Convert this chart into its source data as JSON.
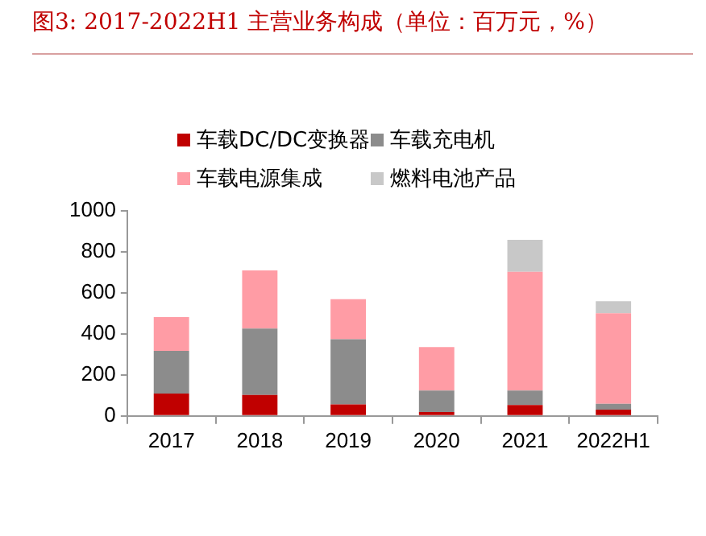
{
  "chart_data": {
    "type": "bar",
    "title": "图3:  2017-2022H1 主营业务构成（单位：百万元，%）",
    "categories": [
      "2017",
      "2018",
      "2019",
      "2020",
      "2021",
      "2022H1"
    ],
    "stacked": true,
    "series": [
      {
        "name": "车载DC/DC变换器",
        "color": "#c00000",
        "values": [
          109,
          102,
          56,
          19,
          53,
          31
        ]
      },
      {
        "name": "车载充电机",
        "color": "#8c8c8c",
        "values": [
          208,
          323,
          317,
          105,
          71,
          28
        ]
      },
      {
        "name": "车载电源集成",
        "color": "#ff9ca5",
        "values": [
          164,
          283,
          195,
          211,
          578,
          441
        ]
      },
      {
        "name": "燃料电池产品",
        "color": "#c8c8c8",
        "values": [
          0,
          0,
          0,
          0,
          155,
          59
        ]
      }
    ],
    "ylim": [
      0,
      1000
    ],
    "yticks": [
      0,
      200,
      400,
      600,
      800,
      1000
    ],
    "grid": false,
    "legend": "top"
  }
}
